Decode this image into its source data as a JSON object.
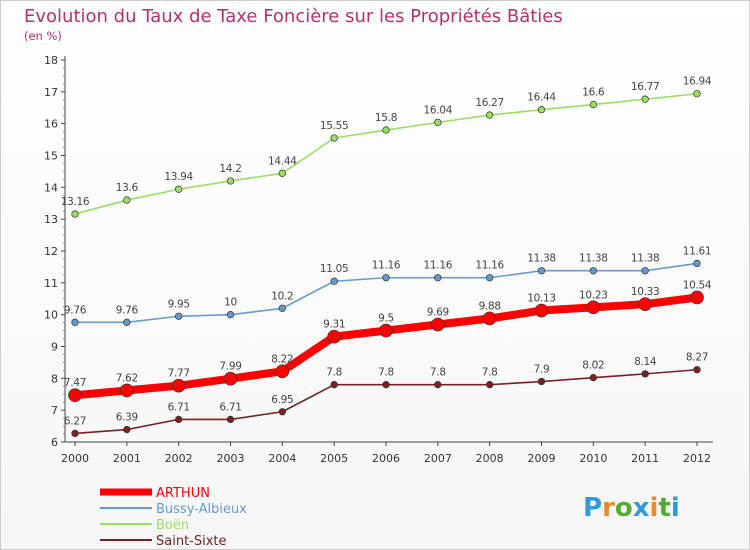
{
  "chart_data": {
    "type": "line",
    "title": "Evolution du Taux de Taxe Foncière sur les Propriétés Bâties",
    "subtitle": "(en %)",
    "x": [
      "2000",
      "2001",
      "2002",
      "2003",
      "2004",
      "2005",
      "2006",
      "2007",
      "2008",
      "2009",
      "2010",
      "2011",
      "2012"
    ],
    "y_ticks": [
      "6",
      "7",
      "8",
      "9",
      "10",
      "11",
      "12",
      "13",
      "14",
      "15",
      "16",
      "17",
      "18"
    ],
    "ylim": [
      6,
      18
    ],
    "grid": false,
    "legend_position": "bottom-left",
    "series": [
      {
        "name": "ARTHUN",
        "color": "#ff0000",
        "labels": [
          "7.47",
          "7.62",
          "7.77",
          "7.99",
          "8.22",
          "9.31",
          "9.5",
          "9.69",
          "9.88",
          "10.13",
          "10.23",
          "10.33",
          "10.54"
        ],
        "values": [
          7.47,
          7.62,
          7.77,
          7.99,
          8.22,
          9.31,
          9.5,
          9.69,
          9.88,
          10.13,
          10.23,
          10.33,
          10.54
        ]
      },
      {
        "name": "Bussy-Albieux",
        "color": "#6699cc",
        "labels": [
          "9.76",
          "9.76",
          "9.95",
          "10",
          "10.2",
          "11.05",
          "11.16",
          "11.16",
          "11.16",
          "11.38",
          "11.38",
          "11.38",
          "11.61"
        ],
        "values": [
          9.76,
          9.76,
          9.95,
          10,
          10.2,
          11.05,
          11.16,
          11.16,
          11.16,
          11.38,
          11.38,
          11.38,
          11.61
        ]
      },
      {
        "name": "Boën",
        "color": "#99dd66",
        "labels": [
          "13.16",
          "13.6",
          "13.94",
          "14.2",
          "14.44",
          "15.55",
          "15.8",
          "16.04",
          "16.27",
          "16.44",
          "16.6",
          "16.77",
          "16.94"
        ],
        "values": [
          13.16,
          13.6,
          13.94,
          14.2,
          14.44,
          15.55,
          15.8,
          16.04,
          16.27,
          16.44,
          16.6,
          16.77,
          16.94
        ]
      },
      {
        "name": "Saint-Sixte",
        "color": "#772222",
        "labels": [
          "6.27",
          "6.39",
          "6.71",
          "6.71",
          "6.95",
          "7.8",
          "7.8",
          "7.8",
          "7.8",
          "7.9",
          "8.02",
          "8.14",
          "8.27"
        ],
        "values": [
          6.27,
          6.39,
          6.71,
          6.71,
          6.95,
          7.8,
          7.8,
          7.8,
          7.8,
          7.9,
          8.02,
          8.14,
          8.27
        ]
      }
    ]
  },
  "logo": {
    "text": "Proxiti"
  }
}
